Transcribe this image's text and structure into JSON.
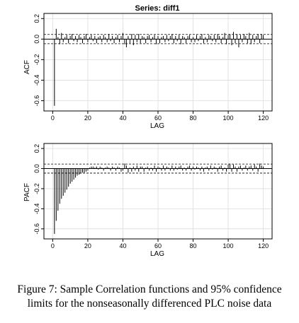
{
  "figure": {
    "caption_line1": "Figure 7: Sample Correlation functions and 95% confidence",
    "caption_line2": "limits for the nonseasonally differenced PLC noise data"
  },
  "chart_data": [
    {
      "type": "bar",
      "title": "Series:  diff1",
      "xlabel": "LAG",
      "ylabel": "ACF",
      "xlim": [
        -5,
        125
      ],
      "ylim": [
        -0.7,
        0.25
      ],
      "xticks": [
        0,
        20,
        40,
        60,
        80,
        100,
        120
      ],
      "yticks": [
        -0.6,
        -0.4,
        -0.2,
        0.0,
        0.2
      ],
      "ytick_labels": [
        "-0.6",
        "-0.4",
        "-0.2",
        "0.0",
        "0.2"
      ],
      "grid": true,
      "confidence_limits": [
        -0.045,
        0.045
      ],
      "x": [
        1,
        2,
        3,
        4,
        5,
        6,
        7,
        8,
        9,
        10,
        11,
        12,
        13,
        14,
        15,
        16,
        17,
        18,
        19,
        20,
        21,
        22,
        23,
        24,
        25,
        26,
        27,
        28,
        29,
        30,
        31,
        32,
        33,
        34,
        35,
        36,
        37,
        38,
        39,
        40,
        41,
        42,
        43,
        44,
        45,
        46,
        47,
        48,
        49,
        50,
        51,
        52,
        53,
        54,
        55,
        56,
        57,
        58,
        59,
        60,
        61,
        62,
        63,
        64,
        65,
        66,
        67,
        68,
        69,
        70,
        71,
        72,
        73,
        74,
        75,
        76,
        77,
        78,
        79,
        80,
        81,
        82,
        83,
        84,
        85,
        86,
        87,
        88,
        89,
        90,
        91,
        92,
        93,
        94,
        95,
        96,
        97,
        98,
        99,
        100,
        101,
        102,
        103,
        104,
        105,
        106,
        107,
        108,
        109,
        110,
        111,
        112,
        113,
        114,
        115,
        116,
        117,
        118,
        119,
        120
      ],
      "values": [
        -0.65,
        0.1,
        0.02,
        -0.05,
        0.06,
        -0.03,
        0.02,
        0.04,
        -0.04,
        0.03,
        0.05,
        -0.02,
        0.03,
        -0.03,
        0.04,
        0.02,
        -0.04,
        0.03,
        0.05,
        -0.03,
        0.02,
        0.04,
        -0.02,
        0.03,
        -0.04,
        0.02,
        0.03,
        -0.03,
        0.04,
        0.02,
        -0.03,
        0.05,
        -0.02,
        0.03,
        -0.04,
        0.02,
        0.04,
        -0.03,
        0.03,
        0.06,
        -0.05,
        -0.08,
        0.03,
        -0.04,
        0.05,
        -0.06,
        0.04,
        -0.03,
        0.05,
        -0.04,
        0.03,
        0.02,
        -0.04,
        0.03,
        0.04,
        -0.03,
        0.02,
        0.04,
        -0.05,
        0.03,
        -0.04,
        0.02,
        0.03,
        -0.03,
        0.04,
        -0.02,
        0.03,
        0.05,
        -0.04,
        0.03,
        -0.02,
        0.04,
        -0.05,
        0.03,
        0.02,
        -0.04,
        0.03,
        0.04,
        -0.03,
        0.02,
        -0.03,
        0.04,
        -0.02,
        0.03,
        0.05,
        -0.04,
        0.02,
        -0.03,
        0.04,
        0.03,
        -0.02,
        0.04,
        -0.03,
        0.05,
        0.03,
        -0.04,
        0.02,
        0.06,
        -0.05,
        0.04,
        0.05,
        -0.06,
        0.07,
        -0.04,
        0.05,
        -0.08,
        0.04,
        -0.03,
        0.05,
        0.03,
        -0.04,
        0.06,
        -0.05,
        0.04,
        -0.03,
        0.03,
        0.05,
        -0.04,
        0.05,
        0.04
      ]
    },
    {
      "type": "bar",
      "title": "",
      "xlabel": "LAG",
      "ylabel": "PACF",
      "xlim": [
        -5,
        125
      ],
      "ylim": [
        -0.7,
        0.25
      ],
      "xticks": [
        0,
        20,
        40,
        60,
        80,
        100,
        120
      ],
      "yticks": [
        -0.6,
        -0.4,
        -0.2,
        0.0,
        0.2
      ],
      "ytick_labels": [
        "-0.6",
        "-0.4",
        "-0.2",
        "0.0",
        "0.2"
      ],
      "grid": true,
      "confidence_limits": [
        -0.045,
        0.045
      ],
      "x": [
        1,
        2,
        3,
        4,
        5,
        6,
        7,
        8,
        9,
        10,
        11,
        12,
        13,
        14,
        15,
        16,
        17,
        18,
        19,
        20,
        21,
        22,
        23,
        24,
        25,
        26,
        27,
        28,
        29,
        30,
        31,
        32,
        33,
        34,
        35,
        36,
        37,
        38,
        39,
        40,
        41,
        42,
        43,
        44,
        45,
        46,
        47,
        48,
        49,
        50,
        51,
        52,
        53,
        54,
        55,
        56,
        57,
        58,
        59,
        60,
        61,
        62,
        63,
        64,
        65,
        66,
        67,
        68,
        69,
        70,
        71,
        72,
        73,
        74,
        75,
        76,
        77,
        78,
        79,
        80,
        81,
        82,
        83,
        84,
        85,
        86,
        87,
        88,
        89,
        90,
        91,
        92,
        93,
        94,
        95,
        96,
        97,
        98,
        99,
        100,
        101,
        102,
        103,
        104,
        105,
        106,
        107,
        108,
        109,
        110,
        111,
        112,
        113,
        114,
        115,
        116,
        117,
        118,
        119,
        120
      ],
      "values": [
        -0.65,
        -0.52,
        -0.42,
        -0.35,
        -0.3,
        -0.27,
        -0.24,
        -0.21,
        -0.18,
        -0.15,
        -0.13,
        -0.11,
        -0.09,
        -0.07,
        -0.06,
        -0.05,
        -0.04,
        -0.04,
        -0.03,
        -0.02,
        0.01,
        0.02,
        0.02,
        0.01,
        0.02,
        -0.01,
        0.02,
        0.01,
        -0.02,
        0.01,
        0.02,
        0.01,
        -0.02,
        0.02,
        0.01,
        -0.02,
        0.02,
        0.01,
        -0.03,
        -0.02,
        0.05,
        0.03,
        -0.04,
        0.01,
        -0.03,
        0.02,
        -0.02,
        0.03,
        -0.03,
        0.02,
        0.02,
        -0.03,
        0.01,
        0.02,
        -0.02,
        0.01,
        -0.02,
        0.03,
        -0.03,
        0.02,
        0.01,
        -0.02,
        0.03,
        -0.02,
        0.02,
        0.01,
        -0.02,
        0.03,
        -0.02,
        0.02,
        -0.01,
        0.02,
        0.03,
        -0.02,
        0.01,
        -0.02,
        0.02,
        0.03,
        -0.02,
        0.02,
        -0.01,
        0.02,
        0.01,
        -0.02,
        0.02,
        -0.03,
        0.01,
        0.02,
        -0.02,
        0.03,
        -0.01,
        0.02,
        0.01,
        -0.03,
        0.02,
        0.03,
        -0.02,
        0.01,
        -0.03,
        0.04,
        0.05,
        -0.03,
        0.04,
        0.02,
        -0.03,
        0.02,
        0.03,
        -0.02,
        0.01,
        0.03,
        -0.02,
        0.02,
        0.03,
        -0.02,
        0.04,
        0.02,
        -0.03,
        0.05,
        0.03,
        0.02
      ]
    }
  ]
}
